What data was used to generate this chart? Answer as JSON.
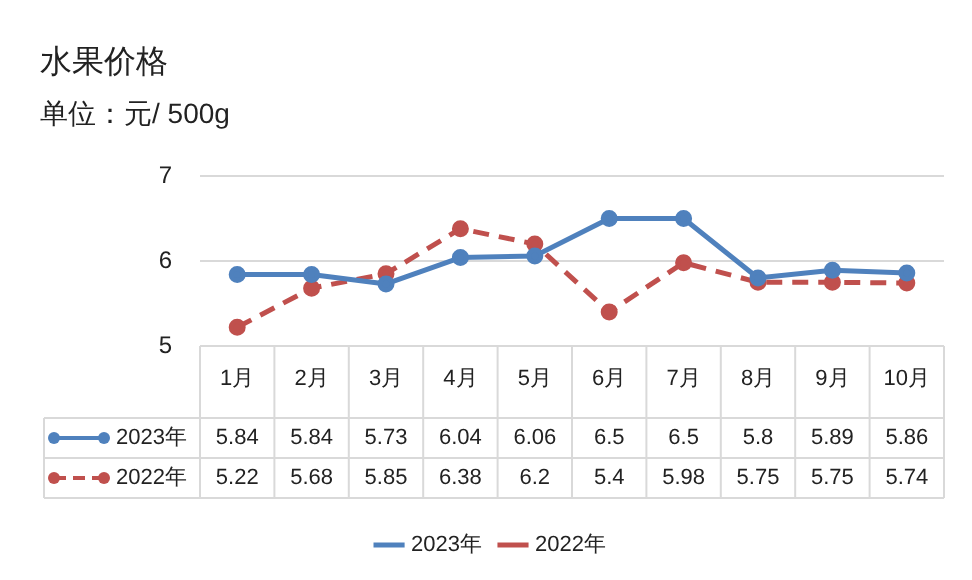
{
  "chart_data": {
    "type": "line",
    "title": "水果价格",
    "subtitle": "单位：元/ 500g",
    "categories": [
      "1月",
      "2月",
      "3月",
      "4月",
      "5月",
      "6月",
      "7月",
      "8月",
      "9月",
      "10月"
    ],
    "series": [
      {
        "name": "2023年",
        "color": "#4f81bd",
        "values": [
          5.84,
          5.84,
          5.73,
          6.04,
          6.06,
          6.5,
          6.5,
          5.8,
          5.89,
          5.86
        ],
        "line_style": "solid"
      },
      {
        "name": "2022年",
        "color": "#c0504d",
        "values": [
          5.22,
          5.68,
          5.85,
          6.38,
          6.2,
          5.4,
          5.98,
          5.75,
          5.75,
          5.74
        ],
        "line_style": "dashed"
      }
    ],
    "ylim": [
      5,
      7
    ],
    "yticks": [
      5,
      6,
      7
    ],
    "grid": "y",
    "legend": "bottom",
    "marker": "circle",
    "data_labels": true
  }
}
